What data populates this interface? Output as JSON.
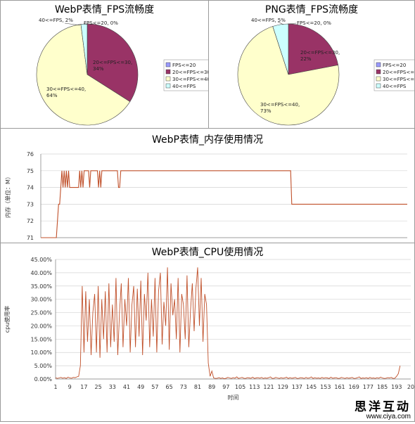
{
  "chart_data": [
    {
      "type": "pie",
      "title": "WebP表情_FPS流畅度",
      "legend": [
        "FPS<=20",
        "20<=FPS<=30",
        "30<=FPS<=40",
        "40<=FPS"
      ],
      "legend_placement": "right",
      "slices": [
        {
          "label": "FPS<=20, 0%",
          "value": 0,
          "color": "#9999ff"
        },
        {
          "label": "20<=FPS<=30,\n34%",
          "value": 34,
          "color": "#993366"
        },
        {
          "label": "30<=FPS<=40,\n64%",
          "value": 64,
          "color": "#ffffcc"
        },
        {
          "label": "40<=FPS, 2%",
          "value": 2,
          "color": "#ccffff"
        }
      ]
    },
    {
      "type": "pie",
      "title": "PNG表情_FPS流畅度",
      "legend": [
        "FPS<=20",
        "20<=FPS<=30",
        "30<=FPS<=40",
        "40<=FPS"
      ],
      "legend_placement": "right",
      "slices": [
        {
          "label": "FPS<=20, 0%",
          "value": 0,
          "color": "#9999ff"
        },
        {
          "label": "20<=FPS<=30,\n22%",
          "value": 22,
          "color": "#993366"
        },
        {
          "label": "30<=FPS<=40,\n73%",
          "value": 73,
          "color": "#ffffcc"
        },
        {
          "label": "40<=FPS, 5%",
          "value": 5,
          "color": "#ccffff"
        }
      ]
    },
    {
      "type": "line",
      "title": "WebP表情_内存使用情况",
      "ylabel": "内存（单位：M）",
      "ylim": [
        71,
        76
      ],
      "yticks": [
        "71",
        "72",
        "73",
        "74",
        "75",
        "76"
      ],
      "grid": true,
      "color": "#c0502a",
      "points": [
        [
          0,
          71
        ],
        [
          14,
          71
        ],
        [
          15,
          72
        ],
        [
          16,
          73
        ],
        [
          17,
          73
        ],
        [
          18,
          74
        ],
        [
          19,
          75
        ],
        [
          20,
          74
        ],
        [
          21,
          75
        ],
        [
          22,
          74
        ],
        [
          23,
          75
        ],
        [
          24,
          74
        ],
        [
          25,
          75
        ],
        [
          26,
          74
        ],
        [
          27,
          74
        ],
        [
          28,
          74
        ],
        [
          29,
          74
        ],
        [
          30,
          74
        ],
        [
          31,
          74
        ],
        [
          32,
          74
        ],
        [
          33,
          74
        ],
        [
          34,
          74
        ],
        [
          35,
          75
        ],
        [
          36,
          74
        ],
        [
          37,
          75
        ],
        [
          38,
          74
        ],
        [
          39,
          75
        ],
        [
          40,
          75
        ],
        [
          41,
          75
        ],
        [
          42,
          75
        ],
        [
          43,
          75
        ],
        [
          44,
          74
        ],
        [
          45,
          75
        ],
        [
          46,
          75
        ],
        [
          47,
          75
        ],
        [
          48,
          75
        ],
        [
          49,
          75
        ],
        [
          50,
          75
        ],
        [
          51,
          75
        ],
        [
          52,
          74
        ],
        [
          53,
          75
        ],
        [
          54,
          74
        ],
        [
          55,
          75
        ],
        [
          56,
          75
        ],
        [
          57,
          75
        ],
        [
          58,
          75
        ],
        [
          59,
          75
        ],
        [
          60,
          75
        ],
        [
          61,
          75
        ],
        [
          62,
          75
        ],
        [
          63,
          75
        ],
        [
          64,
          75
        ],
        [
          65,
          75
        ],
        [
          66,
          75
        ],
        [
          67,
          75
        ],
        [
          68,
          75
        ],
        [
          69,
          75
        ],
        [
          70,
          74
        ],
        [
          71,
          74
        ],
        [
          72,
          75
        ],
        [
          73,
          75
        ],
        [
          100,
          75
        ],
        [
          150,
          75
        ],
        [
          200,
          75
        ],
        [
          225,
          75
        ],
        [
          226,
          73
        ],
        [
          250,
          73
        ],
        [
          300,
          73
        ],
        [
          330,
          73
        ]
      ],
      "xlim": [
        0,
        330
      ]
    },
    {
      "type": "line",
      "title": "WebP表情_CPU使用情况",
      "ylabel": "cpu使用率",
      "xlabel": "时间",
      "ylim": [
        0,
        45
      ],
      "yticks": [
        "0.00%",
        "5.00%",
        "10.00%",
        "15.00%",
        "20.00%",
        "25.00%",
        "30.00%",
        "35.00%",
        "40.00%",
        "45.00%"
      ],
      "xticks": [
        "1",
        "9",
        "17",
        "25",
        "33",
        "41",
        "49",
        "57",
        "65",
        "73",
        "81",
        "89",
        "97",
        "105",
        "113",
        "121",
        "129",
        "137",
        "145",
        "153",
        "161",
        "169",
        "177",
        "185",
        "193",
        "20"
      ],
      "xlim": [
        1,
        201
      ],
      "grid": true,
      "color": "#c0502a",
      "values": [
        0.5,
        0.2,
        0.4,
        0.6,
        0.3,
        0.5,
        0.2,
        0.7,
        0.4,
        0.3,
        0.6,
        0.5,
        0.8,
        1,
        5,
        35,
        10,
        33,
        14,
        30,
        9,
        25,
        32,
        10,
        35,
        8,
        30,
        15,
        33,
        10,
        36,
        12,
        28,
        14,
        38,
        9,
        25,
        36,
        12,
        30,
        20,
        38,
        10,
        28,
        35,
        12,
        34,
        16,
        37,
        9,
        32,
        22,
        40,
        12,
        30,
        16,
        38,
        10,
        33,
        40,
        13,
        29,
        20,
        42,
        11,
        36,
        24,
        30,
        15,
        38,
        10,
        32,
        28,
        15,
        39,
        12,
        26,
        36,
        18,
        34,
        42,
        20,
        38,
        14,
        32,
        28,
        6,
        1,
        3,
        0.4,
        0.2,
        0.3,
        0.5,
        0.2,
        0.4,
        0.1,
        0.3,
        0.6,
        0.4,
        0.2,
        0.5,
        0.3,
        0.8,
        0.2,
        0.4,
        0.6,
        0.3,
        0.2,
        0.5,
        0.4,
        0.3,
        0.7,
        0.2,
        0.4,
        0.5,
        0.3,
        0.6,
        0.2,
        0.4,
        0.3,
        0.5,
        0.8,
        0.2,
        0.3,
        0.6,
        0.4,
        0.2,
        0.5,
        0.3,
        0.4,
        0.7,
        0.2,
        0.5,
        0.3,
        0.4,
        0.6,
        0.2,
        0.3,
        0.5,
        0.4,
        0.2,
        0.6,
        0.3,
        0.4,
        0.8,
        0.2,
        0.5,
        0.3,
        0.4,
        0.2,
        0.6,
        0.3,
        0.5,
        0.4,
        0.2,
        0.7,
        0.3,
        0.4,
        0.5,
        0.2,
        0.3,
        0.6,
        0.4,
        0.2,
        0.5,
        0.3,
        0.4,
        0.6,
        0.2,
        0.3,
        0.5,
        0.8,
        0.2,
        0.4,
        0.3,
        0.5,
        0.2,
        0.6,
        0.3,
        0.4,
        0.2,
        0.5,
        0.3,
        0.7,
        0.4,
        0.2,
        0.3,
        0.5,
        0.4,
        0.6,
        0.2,
        0.3,
        1,
        2,
        5
      ]
    }
  ],
  "watermark": {
    "text": "思洋互动",
    "url": "www.ciya.com"
  }
}
